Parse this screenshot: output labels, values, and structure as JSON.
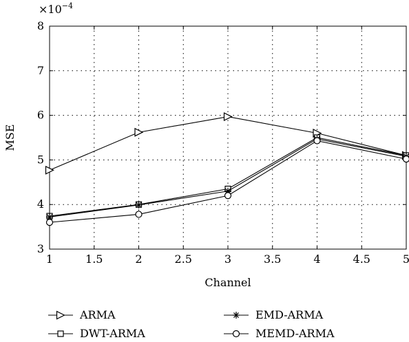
{
  "chart_data": {
    "type": "line",
    "title": "",
    "xlabel": "Channel",
    "ylabel": "MSE",
    "y_multiplier_label": "×10",
    "y_multiplier_exponent": "−4",
    "x": [
      1,
      2,
      3,
      4,
      5
    ],
    "xlim": [
      1,
      5
    ],
    "ylim": [
      3,
      8
    ],
    "xticks": [
      "1",
      "1.5",
      "2",
      "2.5",
      "3",
      "3.5",
      "4",
      "4.5",
      "5"
    ],
    "yticks": [
      "3",
      "4",
      "5",
      "6",
      "7",
      "8"
    ],
    "grid": true,
    "legend_position": "bottom",
    "series": [
      {
        "name": "ARMA",
        "marker": "triangle-right",
        "values": [
          4.77,
          5.62,
          5.97,
          5.6,
          5.1
        ]
      },
      {
        "name": "DWT-ARMA",
        "marker": "square",
        "values": [
          3.74,
          4.0,
          4.35,
          5.5,
          5.1
        ]
      },
      {
        "name": "EMD-ARMA",
        "marker": "asterisk",
        "values": [
          3.72,
          3.99,
          4.3,
          5.47,
          5.08
        ]
      },
      {
        "name": "MEMD-ARMA",
        "marker": "circle",
        "values": [
          3.6,
          3.78,
          4.2,
          5.43,
          5.02
        ]
      }
    ],
    "colors": {
      "line": "#000000",
      "grid": "#000000",
      "background": "#ffffff"
    }
  }
}
